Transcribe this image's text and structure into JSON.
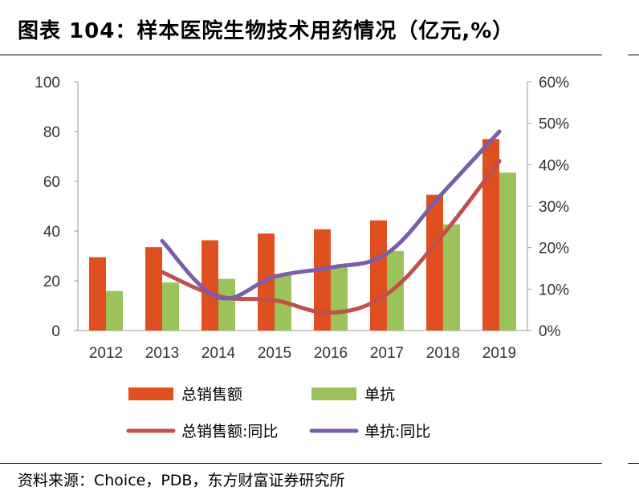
{
  "title": "图表 104：样本医院生物技术用药情况（亿元,%）",
  "source": "资料来源：Choice，PDB，东方财富证券研究所",
  "colors": {
    "sales_bar": "#e04f20",
    "antibody_bar": "#9bc35c",
    "sales_yoy_line": "#c0504d",
    "antibody_yoy_line": "#7b5ea8"
  },
  "chart_data": {
    "type": "bar",
    "categories": [
      "2012",
      "2013",
      "2014",
      "2015",
      "2016",
      "2017",
      "2018",
      "2019"
    ],
    "y_left": {
      "ylim": [
        0,
        100
      ],
      "ticks": [
        "0",
        "20",
        "40",
        "60",
        "80",
        "100"
      ]
    },
    "y_right": {
      "ylim": [
        0,
        60
      ],
      "ticks": [
        "0%",
        "10%",
        "20%",
        "30%",
        "40%",
        "50%",
        "60%"
      ]
    },
    "series": [
      {
        "name": "总销售额",
        "type": "bar",
        "axis": "left",
        "values": [
          29.5,
          33.5,
          36.3,
          39,
          40.7,
          44.3,
          54.6,
          77
        ]
      },
      {
        "name": "单抗",
        "type": "bar",
        "axis": "left",
        "values": [
          15.9,
          19.3,
          20.8,
          22.7,
          25.5,
          32,
          42.7,
          63.5
        ]
      },
      {
        "name": "总销售额:同比",
        "type": "line",
        "axis": "right",
        "values": [
          null,
          14.1,
          8.3,
          7.3,
          4.3,
          8.8,
          23.2,
          40.9
        ]
      },
      {
        "name": "单抗:同比",
        "type": "line",
        "axis": "right",
        "values": [
          null,
          21.6,
          8,
          13,
          15.2,
          18.6,
          33.3,
          48
        ]
      }
    ],
    "legend": {
      "placement": "bottom",
      "items": [
        "总销售额",
        "单抗",
        "总销售额:同比",
        "单抗:同比"
      ]
    },
    "grid": false
  }
}
